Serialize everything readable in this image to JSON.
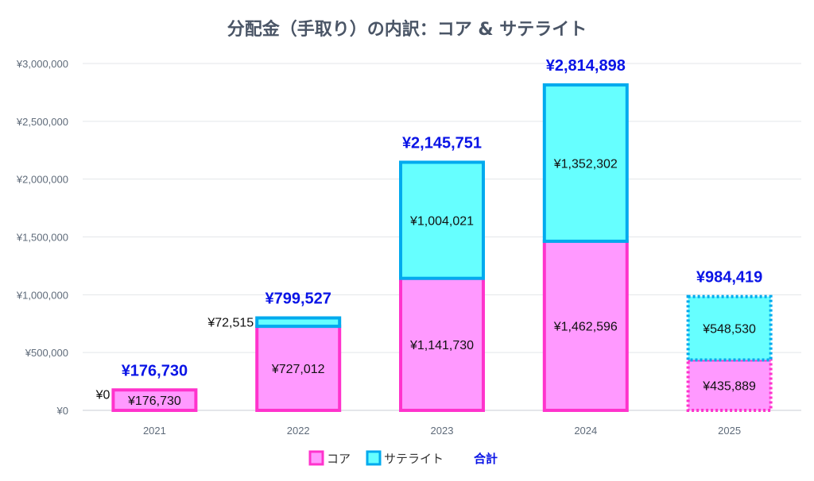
{
  "chart_data": {
    "type": "bar",
    "stacked": true,
    "title": "分配金（手取り）の内訳：コア & サテライト",
    "categories": [
      "2021",
      "2022",
      "2023",
      "2024",
      "2025"
    ],
    "series": [
      {
        "name": "コア",
        "values": [
          176730,
          727012,
          1141730,
          1462596,
          435889
        ],
        "labels": [
          "¥176,730",
          "¥727,012",
          "¥1,141,730",
          "¥1,462,596",
          "¥435,889"
        ],
        "fill": "#ff99ff",
        "stroke": "#ff33cc"
      },
      {
        "name": "サテライト",
        "values": [
          0,
          72515,
          1004021,
          1352302,
          548530
        ],
        "labels": [
          "¥0",
          "¥72,515",
          "¥1,004,021",
          "¥1,352,302",
          "¥548,530"
        ],
        "fill": "#66ffff",
        "stroke": "#00aaee"
      }
    ],
    "totals": {
      "name": "合計",
      "values": [
        176730,
        799527,
        2145751,
        2814898,
        984419
      ],
      "labels": [
        "¥176,730",
        "¥799,527",
        "¥2,145,751",
        "¥2,814,898",
        "¥984,419"
      ],
      "color": "#0a14e6"
    },
    "ylim": [
      0,
      3000000
    ],
    "yticks": [
      0,
      500000,
      1000000,
      1500000,
      2000000,
      2500000,
      3000000
    ],
    "ytick_labels": [
      "¥0",
      "¥500,000",
      "¥1,000,000",
      "¥1,500,000",
      "¥2,000,000",
      "¥2,500,000",
      "¥3,000,000"
    ],
    "dashed_categories": [
      "2025"
    ],
    "grid": true,
    "legend_position": "bottom-center"
  }
}
